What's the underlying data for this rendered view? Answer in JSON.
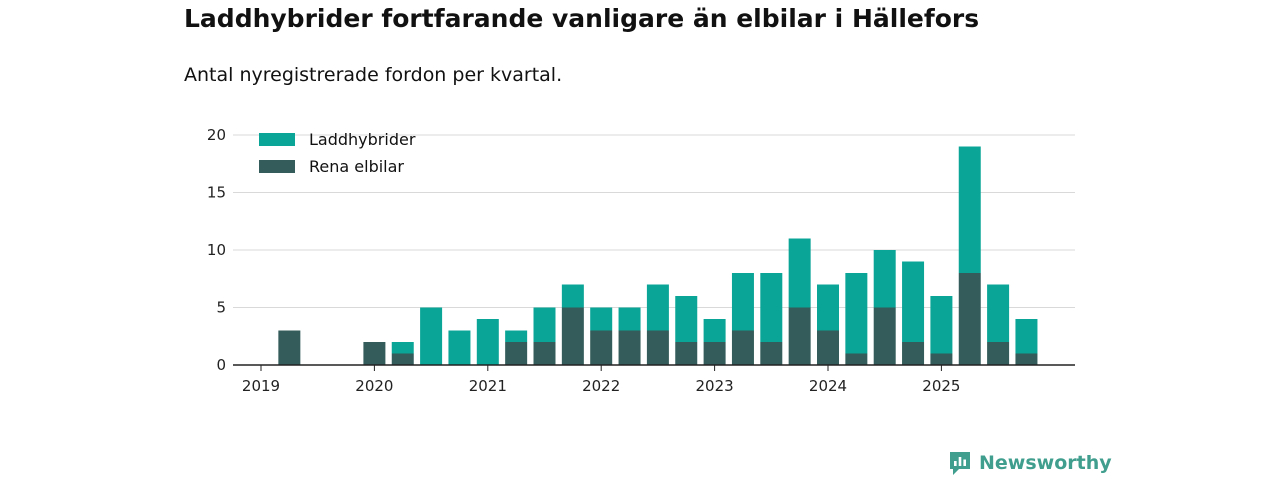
{
  "header": {
    "title": "Laddhybrider fortfarande vanligare än elbilar i Hällefors",
    "subtitle": "Antal nyregistrerade fordon per kvartal."
  },
  "brand": {
    "name": "Newsworthy"
  },
  "colors": {
    "hybrid": "#0aa597",
    "electric": "#345c5a",
    "grid": "#d9d9d9",
    "axis": "#222222",
    "brand": "#3f9e8d"
  },
  "chart_data": {
    "type": "bar",
    "stacked": true,
    "title": "Laddhybrider fortfarande vanligare än elbilar i Hällefors",
    "subtitle": "Antal nyregistrerade fordon per kvartal.",
    "xlabel": "",
    "ylabel": "",
    "ylim": [
      0,
      20
    ],
    "yticks": [
      0,
      5,
      10,
      15,
      20
    ],
    "legend_position": "top-left",
    "grid": true,
    "year_labels": [
      "2019",
      "2020",
      "2021",
      "2022",
      "2023",
      "2024",
      "2025"
    ],
    "categories": [
      "2019 Q1",
      "2019 Q2",
      "2019 Q3",
      "2019 Q4",
      "2020 Q1",
      "2020 Q2",
      "2020 Q3",
      "2020 Q4",
      "2021 Q1",
      "2021 Q2",
      "2021 Q3",
      "2021 Q4",
      "2022 Q1",
      "2022 Q2",
      "2022 Q3",
      "2022 Q4",
      "2023 Q1",
      "2023 Q2",
      "2023 Q3",
      "2023 Q4",
      "2024 Q1",
      "2024 Q2",
      "2024 Q3",
      "2024 Q4",
      "2025 Q1",
      "2025 Q2",
      "2025 Q3",
      "2025 Q4"
    ],
    "series": [
      {
        "name": "Rena elbilar",
        "values": [
          0,
          3,
          0,
          0,
          2,
          1,
          0,
          0,
          0,
          2,
          2,
          5,
          3,
          3,
          3,
          2,
          2,
          3,
          2,
          5,
          3,
          1,
          5,
          2,
          1,
          8,
          2,
          1
        ]
      },
      {
        "name": "Laddhybrider",
        "values": [
          0,
          0,
          0,
          0,
          0,
          1,
          5,
          3,
          4,
          1,
          3,
          2,
          2,
          2,
          4,
          4,
          2,
          5,
          6,
          6,
          4,
          7,
          5,
          7,
          5,
          11,
          5,
          3
        ]
      }
    ],
    "legend": [
      "Laddhybrider",
      "Rena elbilar"
    ]
  }
}
